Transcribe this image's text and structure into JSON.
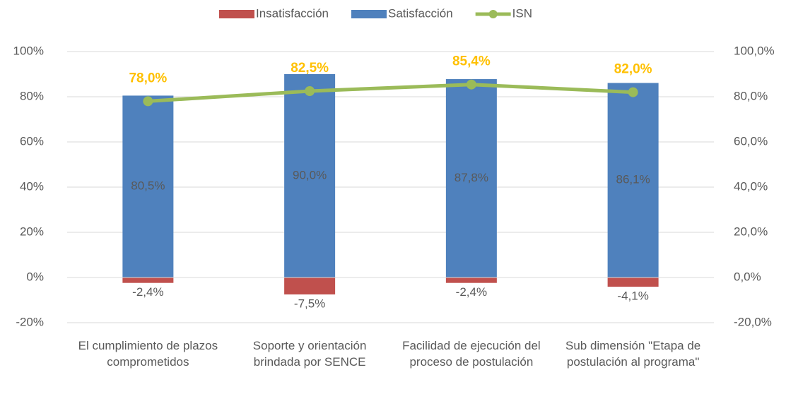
{
  "chart_data": {
    "type": "bar",
    "categories": [
      "El cumplimiento de plazos comprometidos",
      "Soporte y orientación brindada por SENCE",
      "Facilidad de ejecución del proceso de postulación",
      "Sub dimensión \"Etapa de postulación al programa\""
    ],
    "series": [
      {
        "name": "Insatisfacción",
        "color": "#c0504d",
        "values": [
          -2.4,
          -7.5,
          -2.4,
          -4.1
        ],
        "value_labels": [
          "-2,4%",
          "-7,5%",
          "-2,4%",
          "-4,1%"
        ]
      },
      {
        "name": "Satisfacción",
        "color": "#4f81bd",
        "values": [
          80.5,
          90.0,
          87.8,
          86.1
        ],
        "value_labels": [
          "80,5%",
          "90,0%",
          "87,8%",
          "86,1%"
        ]
      },
      {
        "name": "ISN",
        "type": "line",
        "axis": "y2",
        "color": "#9bbb59",
        "label_color": "#ffc000",
        "values": [
          78.0,
          82.5,
          85.4,
          82.0
        ],
        "value_labels": [
          "78,0%",
          "82,5%",
          "85,4%",
          "82,0%"
        ]
      }
    ],
    "ylim": [
      -20,
      100
    ],
    "yticks": [
      {
        "value": -20,
        "label": "-20%"
      },
      {
        "value": 0,
        "label": "0%"
      },
      {
        "value": 20,
        "label": "20%"
      },
      {
        "value": 40,
        "label": "40%"
      },
      {
        "value": 60,
        "label": "60%"
      },
      {
        "value": 80,
        "label": "80%"
      },
      {
        "value": 100,
        "label": "100%"
      }
    ],
    "y2lim": [
      -20,
      100
    ],
    "y2ticks": [
      {
        "value": -20,
        "label": "-20,0%"
      },
      {
        "value": 0,
        "label": "0,0%"
      },
      {
        "value": 20,
        "label": "20,0%"
      },
      {
        "value": 40,
        "label": "40,0%"
      },
      {
        "value": 60,
        "label": "60,0%"
      },
      {
        "value": 80,
        "label": "80,0%"
      },
      {
        "value": 100,
        "label": "100,0%"
      }
    ],
    "grid": true,
    "legend": "top"
  }
}
